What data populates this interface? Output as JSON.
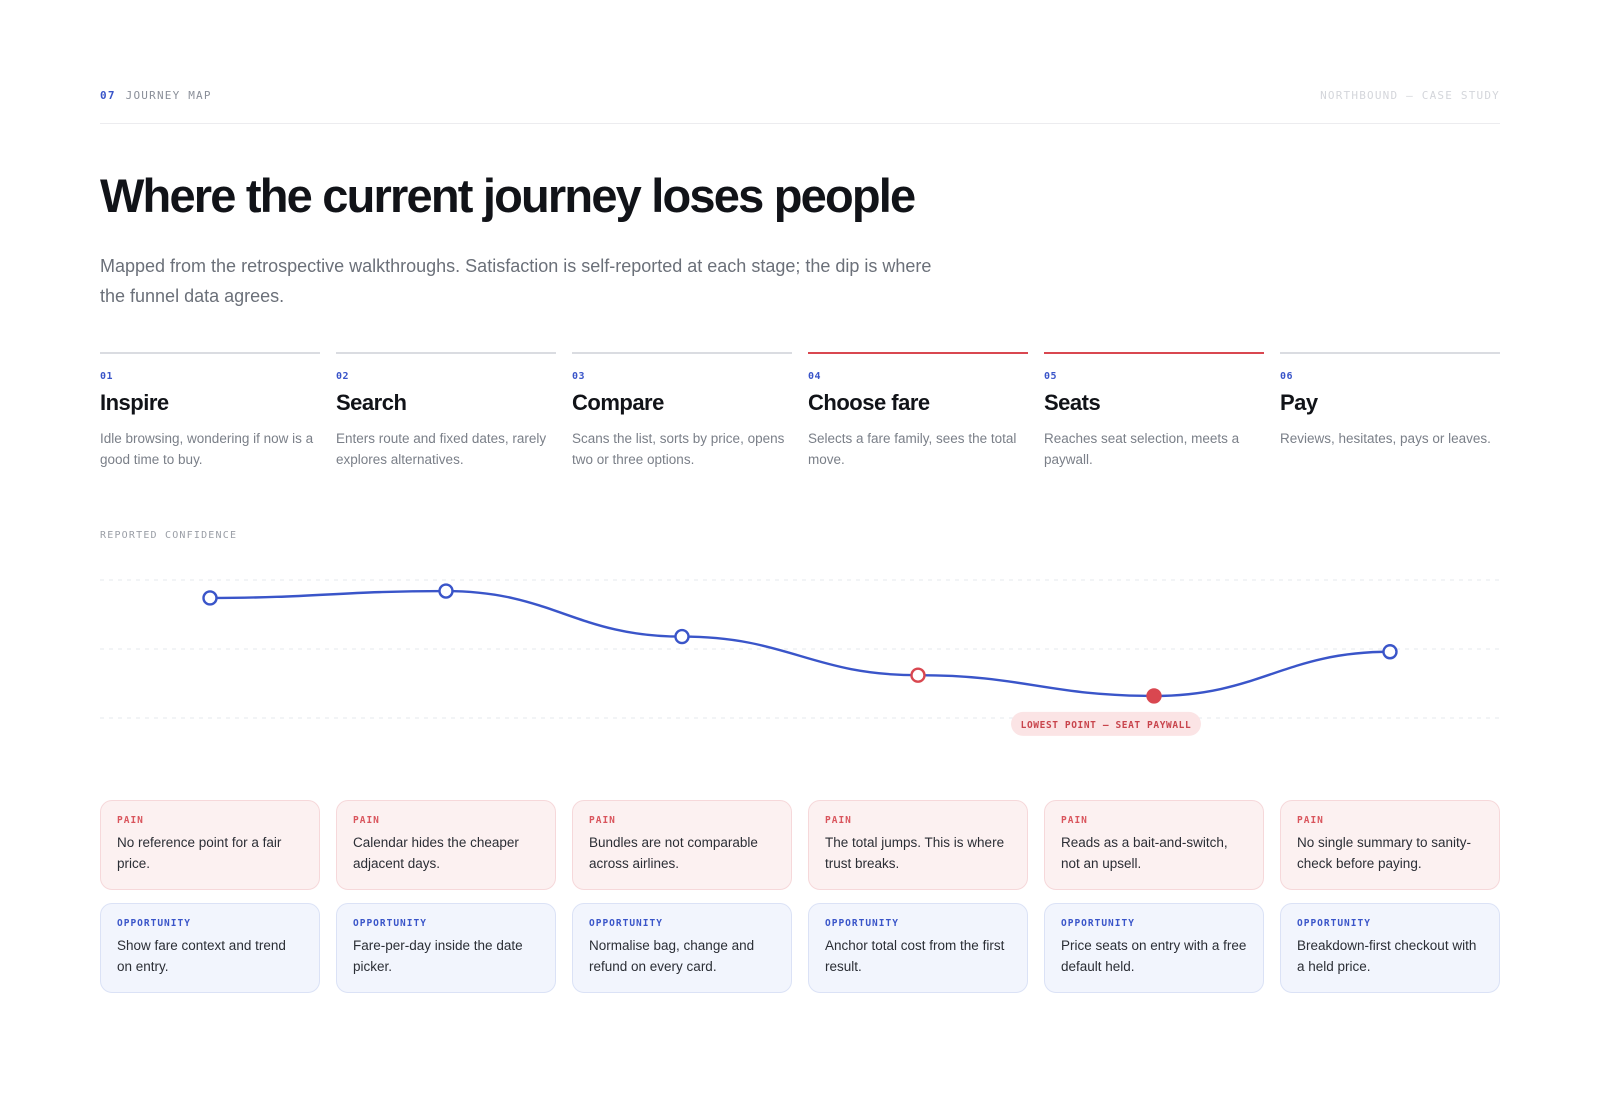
{
  "header": {
    "section_number": "07",
    "section_label": "JOURNEY MAP",
    "meta": "NORTHBOUND — CASE STUDY"
  },
  "title": "Where the current journey loses people",
  "lede": "Mapped from the retrospective walkthroughs. Satisfaction is self-reported at each stage; the dip is where the funnel data agrees.",
  "stages": [
    {
      "num": "01",
      "name": "Inspire",
      "desc": "Idle browsing, wondering if now is a good time to buy.",
      "alert": false
    },
    {
      "num": "02",
      "name": "Search",
      "desc": "Enters route and fixed dates, rarely explores alternatives.",
      "alert": false
    },
    {
      "num": "03",
      "name": "Compare",
      "desc": "Scans the list, sorts by price, opens two or three options.",
      "alert": false
    },
    {
      "num": "04",
      "name": "Choose fare",
      "desc": "Selects a fare family, sees the total move.",
      "alert": true
    },
    {
      "num": "05",
      "name": "Seats",
      "desc": "Reaches seat selection, meets a paywall.",
      "alert": true
    },
    {
      "num": "06",
      "name": "Pay",
      "desc": "Reviews, hesitates, pays or leaves.",
      "alert": false
    }
  ],
  "chart_label": "REPORTED CONFIDENCE",
  "chart_data": {
    "type": "line",
    "x": [
      "Inspire",
      "Search",
      "Compare",
      "Choose fare",
      "Seats",
      "Pay"
    ],
    "values": [
      0.87,
      0.92,
      0.59,
      0.31,
      0.16,
      0.48
    ],
    "ylim": [
      0,
      1
    ],
    "grid": "dashed horizontal",
    "line_color": "#3a55c9",
    "alert_color": "#d94750",
    "alert_points": [
      3
    ],
    "lowest_point": 4,
    "annotation": "LOWEST POINT — SEAT PAYWALL"
  },
  "pain_tag": "PAIN",
  "opportunity_tag": "OPPORTUNITY",
  "pains": [
    "No reference point for a fair price.",
    "Calendar hides the cheaper adjacent days.",
    "Bundles are not comparable across airlines.",
    "The total jumps. This is where trust breaks.",
    "Reads as a bait-and-switch, not an upsell.",
    "No single summary to sanity-check before paying."
  ],
  "opportunities": [
    "Show fare context and trend on entry.",
    "Fare-per-day inside the date picker.",
    "Normalise bag, change and refund on every card.",
    "Anchor total cost from the first result.",
    "Price seats on entry with a free default held.",
    "Breakdown-first checkout with a held price."
  ]
}
